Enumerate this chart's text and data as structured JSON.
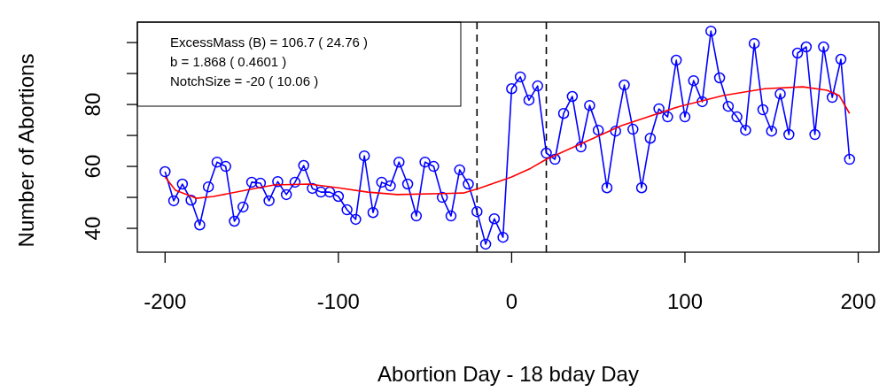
{
  "chart_data": {
    "type": "line",
    "xlabel": "Abortion Day - 18 bday Day",
    "ylabel": "Number of Abortions",
    "x": [
      -200,
      -195,
      -190,
      -185,
      -180,
      -175,
      -170,
      -165,
      -160,
      -155,
      -150,
      -145,
      -140,
      -135,
      -130,
      -125,
      -120,
      -115,
      -110,
      -105,
      -100,
      -95,
      -90,
      -85,
      -80,
      -75,
      -70,
      -65,
      -60,
      -55,
      -50,
      -45,
      -40,
      -35,
      -30,
      -25,
      -20,
      -15,
      -10,
      -5,
      0,
      5,
      10,
      15,
      20,
      25,
      30,
      35,
      40,
      45,
      50,
      55,
      60,
      65,
      70,
      75,
      80,
      85,
      90,
      95,
      100,
      105,
      110,
      115,
      120,
      125,
      130,
      135,
      140,
      145,
      150,
      155,
      160,
      165,
      170,
      175,
      180,
      185,
      190,
      195
    ],
    "series": [
      {
        "color": "#0000ff",
        "marker": "circle",
        "values": [
          58.3,
          48.9,
          54.3,
          49.1,
          41.1,
          53.4,
          61.4,
          60,
          42.3,
          46.9,
          54.9,
          54.6,
          48.9,
          55.1,
          50.9,
          54.9,
          60.3,
          52.9,
          51.7,
          51.7,
          50.3,
          46,
          42.9,
          63.4,
          45.1,
          54.9,
          53.7,
          61.4,
          54.3,
          44,
          61.4,
          60,
          50,
          44,
          58.9,
          54.3,
          45.4,
          34.9,
          43.1,
          37.1,
          85.1,
          88.9,
          81.4,
          86,
          64.3,
          62.3,
          77.1,
          82.6,
          66.3,
          79.7,
          71.7,
          53.1,
          71.4,
          86.3,
          72,
          53.1,
          69.1,
          78.6,
          76,
          94.3,
          76,
          87.7,
          80.9,
          103.7,
          88.6,
          79.4,
          76,
          71.7,
          99.7,
          78.3,
          71.4,
          83.4,
          70.3,
          96.6,
          98.6,
          70.3,
          98.6,
          82.3,
          94.6,
          62.3
        ]
      },
      {
        "color": "#ff0000",
        "marker": "none",
        "x": [
          -200,
          -194,
          -182,
          -172,
          -151,
          -137,
          -117,
          -100,
          -83,
          -66,
          -28,
          -19,
          0,
          11,
          20,
          52,
          63,
          97,
          122,
          146,
          168,
          182,
          189,
          195
        ],
        "values": [
          56.6,
          52.3,
          49.7,
          50.3,
          52.6,
          54,
          54.3,
          53.1,
          51.7,
          50.9,
          51.4,
          52.9,
          56.6,
          59.4,
          62.3,
          70.3,
          73.1,
          79.4,
          82.9,
          85.1,
          85.7,
          84.6,
          82.9,
          77.1
        ]
      }
    ],
    "xlim": [
      -216,
      212
    ],
    "xticks": [
      -200,
      -100,
      0,
      100,
      200
    ],
    "ylim": [
      32.3,
      106.6
    ],
    "yticks": [
      40,
      {
        "value": 50,
        "label": null
      },
      60,
      {
        "value": 70,
        "label": null
      },
      80,
      {
        "value": 90,
        "label": null
      },
      {
        "value": 100,
        "label": null
      }
    ],
    "ref_lines": [
      {
        "axis": "x",
        "value": -20,
        "color": "#000000",
        "line_style": "dashed"
      },
      {
        "axis": "x",
        "value": 20,
        "color": "#000000",
        "line_style": "dashed"
      }
    ],
    "annotations": [
      "ExcessMass (B) =  106.7 ( 24.76 )",
      "b =  1.868 ( 0.4601 )",
      "NotchSize =  -20 ( 10.06 )"
    ],
    "grid": false
  }
}
